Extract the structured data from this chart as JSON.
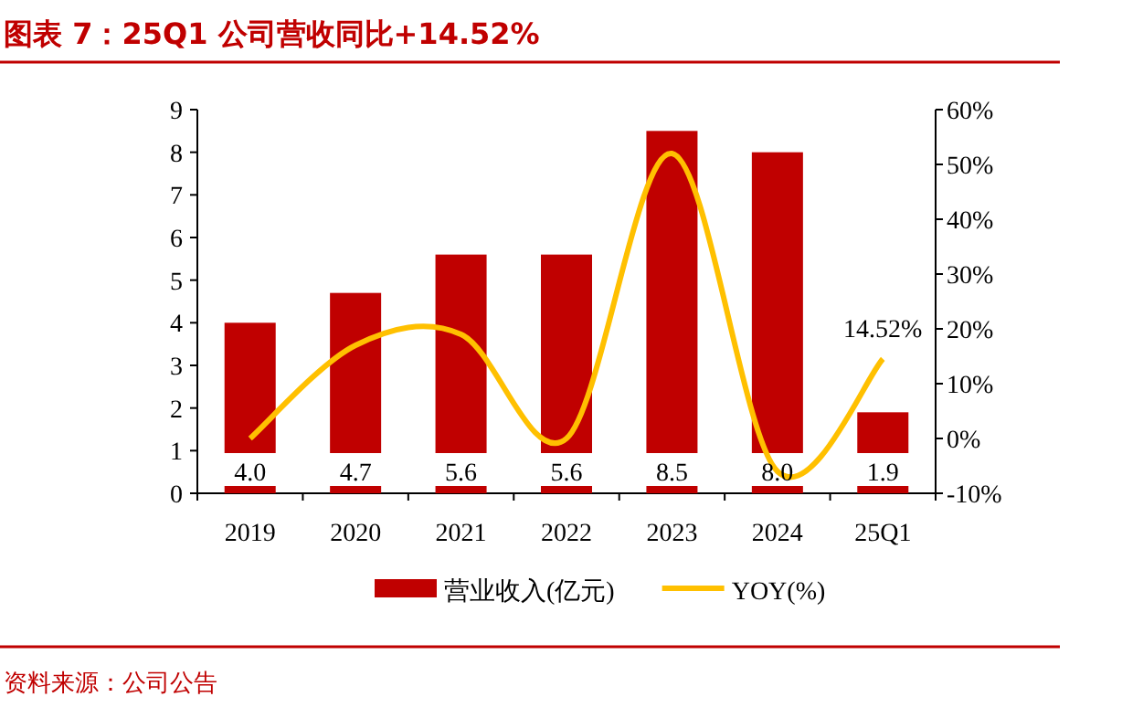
{
  "chart_data": {
    "type": "bar",
    "title": "图表 7：25Q1 公司营收同比+14.52%",
    "annotations": [
      "资料来源：公司公告"
    ],
    "categories": [
      "2019",
      "2020",
      "2021",
      "2022",
      "2023",
      "2024",
      "25Q1"
    ],
    "series": [
      {
        "name": "营业收入(亿元)",
        "color": "#c00000",
        "values": [
          4.0,
          4.7,
          5.6,
          5.6,
          8.5,
          8.0,
          1.9
        ],
        "value_labels": [
          "4.0",
          "4.7",
          "5.6",
          "5.6",
          "8.5",
          "8.0",
          "1.9"
        ]
      },
      {
        "name": "YOY(%)",
        "type": "line",
        "axis": "y2",
        "color": "#ffc000",
        "values": [
          0,
          17,
          19,
          0,
          52,
          -6,
          14.52
        ],
        "value_labels": [
          null,
          null,
          null,
          null,
          null,
          null,
          "14.52%"
        ]
      }
    ],
    "ylim": [
      0,
      9
    ],
    "yticks": [
      0,
      1,
      2,
      3,
      4,
      5,
      6,
      7,
      8,
      9
    ],
    "y2lim": [
      -10,
      60
    ],
    "y2ticks": [
      {
        "value": -10,
        "label": "-10%"
      },
      {
        "value": 0,
        "label": "0%"
      },
      {
        "value": 10,
        "label": "10%"
      },
      {
        "value": 20,
        "label": "20%"
      },
      {
        "value": 30,
        "label": "30%"
      },
      {
        "value": 40,
        "label": "40%"
      },
      {
        "value": 50,
        "label": "50%"
      },
      {
        "value": 60,
        "label": "60%"
      }
    ],
    "legend": "bottom",
    "grid": false,
    "marker": "none",
    "line_style": "solid"
  }
}
